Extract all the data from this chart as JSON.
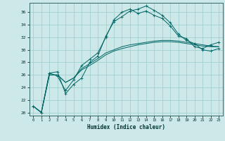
{
  "title": "",
  "xlabel": "Humidex (Indice chaleur)",
  "xlim": [
    -0.5,
    23.5
  ],
  "ylim": [
    19.5,
    37.5
  ],
  "yticks": [
    20,
    22,
    24,
    26,
    28,
    30,
    32,
    34,
    36
  ],
  "xticks": [
    0,
    1,
    2,
    3,
    4,
    5,
    6,
    7,
    8,
    9,
    10,
    11,
    12,
    13,
    14,
    15,
    16,
    17,
    18,
    19,
    20,
    21,
    22,
    23
  ],
  "background_color": "#cce8e8",
  "grid_color": "#99cccc",
  "line_color": "#006666",
  "lines": [
    [
      21.0,
      20.0,
      26.3,
      26.5,
      23.0,
      24.5,
      25.5,
      28.0,
      29.0,
      32.2,
      34.5,
      35.3,
      36.2,
      36.5,
      37.0,
      36.3,
      35.5,
      34.3,
      32.5,
      31.5,
      31.0,
      30.0,
      29.8,
      30.2
    ],
    [
      21.0,
      20.0,
      26.3,
      25.8,
      23.5,
      25.2,
      27.5,
      28.5,
      29.5,
      32.0,
      34.8,
      36.0,
      36.5,
      35.8,
      36.2,
      35.5,
      35.0,
      33.8,
      32.2,
      31.8,
      30.5,
      30.2,
      30.8,
      31.2
    ],
    [
      21.0,
      20.0,
      26.0,
      26.0,
      24.8,
      25.5,
      26.8,
      27.5,
      28.3,
      29.2,
      29.8,
      30.2,
      30.5,
      30.8,
      31.0,
      31.2,
      31.3,
      31.3,
      31.2,
      31.0,
      30.8,
      30.6,
      30.5,
      30.5
    ],
    [
      21.0,
      20.0,
      26.0,
      26.0,
      24.8,
      25.5,
      27.0,
      27.8,
      28.6,
      29.5,
      30.0,
      30.5,
      30.8,
      31.0,
      31.2,
      31.4,
      31.5,
      31.5,
      31.4,
      31.2,
      31.0,
      30.8,
      30.6,
      30.5
    ]
  ],
  "line_markers": [
    true,
    true,
    false,
    false
  ]
}
